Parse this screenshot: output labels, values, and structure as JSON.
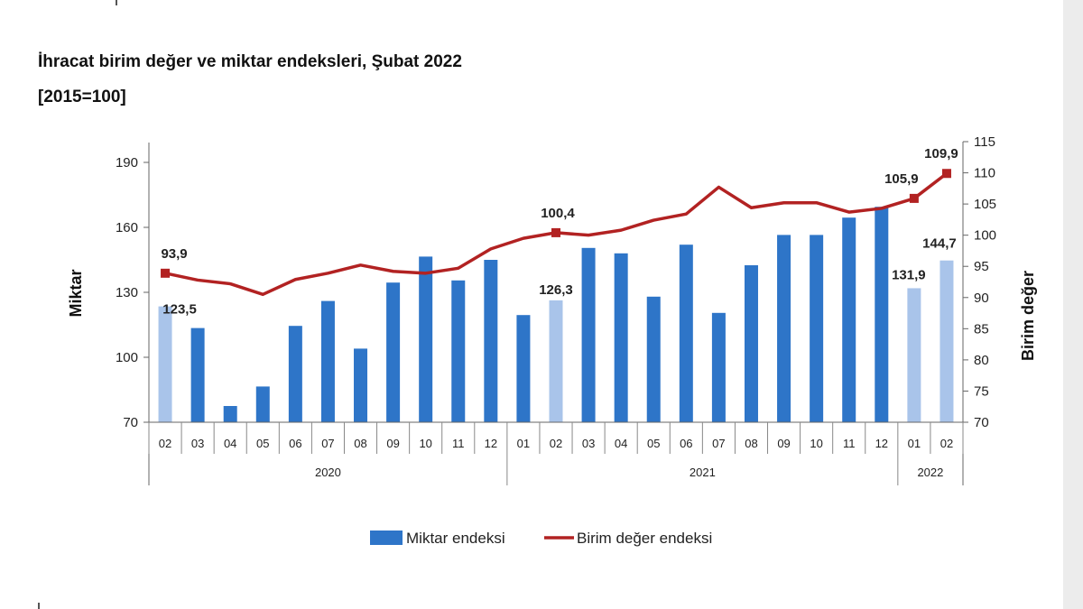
{
  "title": "İhracat birim değer ve miktar endeksleri, Şubat 2022",
  "subtitle": "[2015=100]",
  "chart_data": {
    "type": "bar+line",
    "title": "İhracat birim değer ve miktar endeksleri, Şubat 2022",
    "subtitle": "[2015=100]",
    "categories": [
      "02",
      "03",
      "04",
      "05",
      "06",
      "07",
      "08",
      "09",
      "10",
      "11",
      "12",
      "01",
      "02",
      "03",
      "04",
      "05",
      "06",
      "07",
      "08",
      "09",
      "10",
      "11",
      "12",
      "01",
      "02"
    ],
    "years": [
      {
        "label": "2020",
        "start": 0,
        "end": 10
      },
      {
        "label": "2021",
        "start": 11,
        "end": 22
      },
      {
        "label": "2022",
        "start": 23,
        "end": 24
      }
    ],
    "series": [
      {
        "name": "Miktar endeksi",
        "type": "bar",
        "axis": "left",
        "color": "#2e75c8",
        "highlight_color": "#a9c4ea",
        "highlight_indices": [
          0,
          12,
          23,
          24
        ],
        "values": [
          123.5,
          113.5,
          77.5,
          86.5,
          114.5,
          126.0,
          104.0,
          134.5,
          146.5,
          135.5,
          145.0,
          119.5,
          126.3,
          150.5,
          148.0,
          128.0,
          152.0,
          120.5,
          142.5,
          156.5,
          156.5,
          164.5,
          169.5,
          131.9,
          144.7
        ]
      },
      {
        "name": "Birim değer endeksi",
        "type": "line",
        "axis": "right",
        "color": "#b22222",
        "marker_indices": [
          0,
          12,
          23,
          24
        ],
        "values": [
          93.9,
          92.8,
          92.2,
          90.5,
          92.9,
          93.9,
          95.2,
          94.2,
          93.9,
          94.7,
          97.8,
          99.5,
          100.4,
          100.0,
          100.8,
          102.4,
          103.4,
          107.7,
          104.4,
          105.2,
          105.2,
          103.7,
          104.3,
          105.9,
          109.9
        ]
      }
    ],
    "data_labels": [
      {
        "series": 0,
        "index": 0,
        "text": "123,5"
      },
      {
        "series": 0,
        "index": 12,
        "text": "126,3"
      },
      {
        "series": 0,
        "index": 23,
        "text": "131,9"
      },
      {
        "series": 0,
        "index": 24,
        "text": "144,7"
      },
      {
        "series": 1,
        "index": 0,
        "text": "93,9"
      },
      {
        "series": 1,
        "index": 12,
        "text": "100,4"
      },
      {
        "series": 1,
        "index": 23,
        "text": "105,9"
      },
      {
        "series": 1,
        "index": 24,
        "text": "109,9"
      }
    ],
    "y_left": {
      "label": "Miktar",
      "min": 70,
      "max": 190,
      "ticks": [
        "70",
        "100",
        "130",
        "160",
        "190"
      ]
    },
    "y_right": {
      "label": "Birim değer",
      "min": 70,
      "max": 115,
      "ticks": [
        "70",
        "75",
        "80",
        "85",
        "90",
        "95",
        "100",
        "105",
        "110",
        "115"
      ]
    },
    "legend": {
      "position": "bottom"
    },
    "grid": false
  }
}
